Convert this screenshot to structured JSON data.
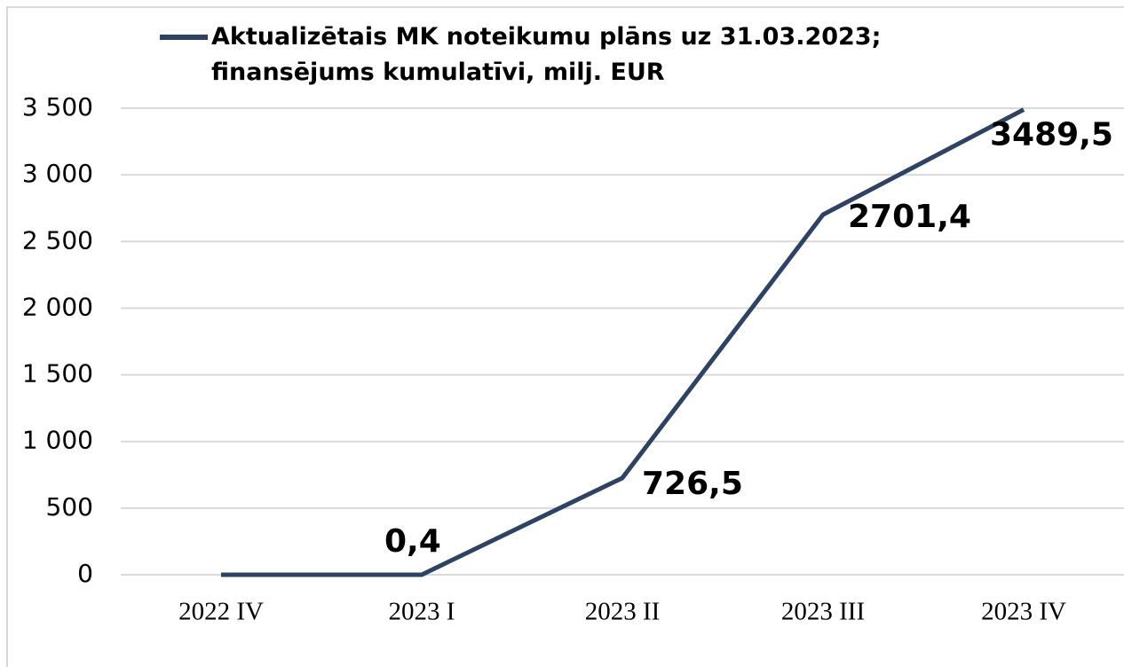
{
  "chart_data": {
    "type": "line",
    "categories": [
      "2022 IV",
      "2023 I",
      "2023 II",
      "2023 III",
      "2023 IV"
    ],
    "series": [
      {
        "name": "Aktualizētais MK noteikumu plāns uz 31.03.2023; finansējums kumulatīvi, milj. EUR",
        "color": "#2e4361",
        "values": [
          0,
          0.4,
          726.5,
          2701.4,
          3489.5
        ],
        "value_labels": [
          null,
          "0,4",
          "726,5",
          "2701,4",
          "3489,5"
        ]
      }
    ],
    "ylim": [
      0,
      3500
    ],
    "yticks": [
      0,
      500,
      {
        "value": 1000,
        "label": "1 000"
      },
      {
        "value": 1500,
        "label": "1 500"
      },
      {
        "value": 2000,
        "label": "2 000"
      },
      {
        "value": 2500,
        "label": "2 500"
      },
      {
        "value": 3000,
        "label": "3 000"
      },
      {
        "value": 3500,
        "label": "3 500"
      }
    ],
    "grid": true,
    "legend": "top"
  }
}
